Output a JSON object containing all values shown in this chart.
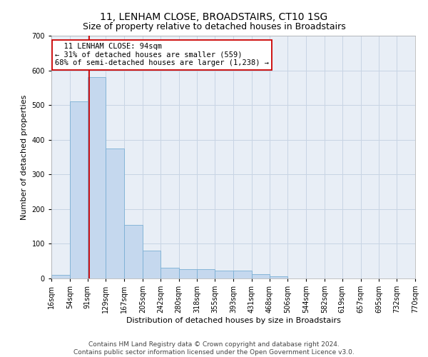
{
  "title": "11, LENHAM CLOSE, BROADSTAIRS, CT10 1SG",
  "subtitle": "Size of property relative to detached houses in Broadstairs",
  "xlabel": "Distribution of detached houses by size in Broadstairs",
  "ylabel": "Number of detached properties",
  "footer_line1": "Contains HM Land Registry data © Crown copyright and database right 2024.",
  "footer_line2": "Contains public sector information licensed under the Open Government Licence v3.0.",
  "annotation_line1": "11 LENHAM CLOSE: 94sqm",
  "annotation_line2": "← 31% of detached houses are smaller (559)",
  "annotation_line3": "68% of semi-detached houses are larger (1,238) →",
  "property_line_x": 94,
  "bar_edges": [
    16,
    54,
    91,
    129,
    167,
    205,
    242,
    280,
    318,
    355,
    393,
    431,
    468,
    506,
    544,
    582,
    619,
    657,
    695,
    732,
    770
  ],
  "bar_heights": [
    10,
    510,
    580,
    375,
    155,
    80,
    30,
    26,
    26,
    22,
    22,
    12,
    7,
    1,
    0,
    0,
    0,
    0,
    0,
    0
  ],
  "bar_color": "#c5d8ee",
  "bar_edge_color": "#7aafd4",
  "property_line_color": "#cc0000",
  "annotation_box_edge_color": "#cc0000",
  "grid_color": "#c8d4e4",
  "background_color": "#e8eef6",
  "ylim": [
    0,
    700
  ],
  "yticks": [
    0,
    100,
    200,
    300,
    400,
    500,
    600,
    700
  ],
  "title_fontsize": 10,
  "subtitle_fontsize": 9,
  "axis_label_fontsize": 8,
  "tick_fontsize": 7,
  "annotation_fontsize": 7.5,
  "footer_fontsize": 6.5
}
